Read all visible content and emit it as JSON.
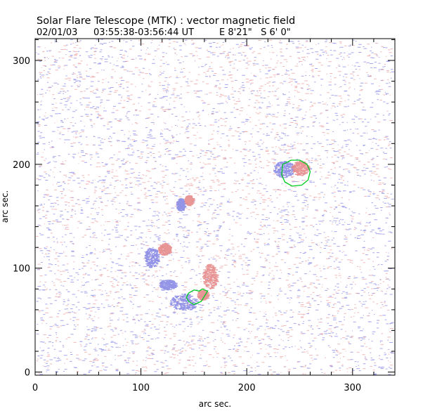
{
  "header": {
    "title": "Solar Flare Telescope (MTK) : vector magnetic field",
    "date": "02/01/03",
    "time_range": "03:55:38-03:56:44 UT",
    "position": "E 8'21\"   S 6' 0\""
  },
  "chart_data": {
    "type": "heatmap",
    "title": "Solar Flare Telescope (MTK) : vector magnetic field",
    "xlabel": "arc sec.",
    "ylabel": "arc sec.",
    "xlim": [
      0,
      340
    ],
    "ylim": [
      -3,
      321
    ],
    "xticks": [
      0,
      100,
      200,
      300
    ],
    "yticks": [
      0,
      100,
      200,
      300
    ],
    "x_minor_step": 20,
    "y_minor_step": 20,
    "colors": {
      "negative": "#8a8ae6",
      "positive": "#e68a8a",
      "contour": "#00cc22",
      "axes": "#000000"
    },
    "regions": [
      {
        "name": "active-region-north-negative",
        "polarity": "negative",
        "x": 235,
        "y": 195,
        "rx": 10,
        "ry": 8
      },
      {
        "name": "active-region-north-positive",
        "polarity": "positive",
        "x": 250,
        "y": 196,
        "rx": 8,
        "ry": 7
      },
      {
        "name": "plage-negative-160",
        "polarity": "negative",
        "x": 137,
        "y": 161,
        "rx": 4,
        "ry": 6
      },
      {
        "name": "plage-positive-165",
        "polarity": "positive",
        "x": 145,
        "y": 165,
        "rx": 4,
        "ry": 5
      },
      {
        "name": "spot-negative-110",
        "polarity": "negative",
        "x": 110,
        "y": 110,
        "rx": 7,
        "ry": 10
      },
      {
        "name": "spot-positive-115",
        "polarity": "positive",
        "x": 122,
        "y": 118,
        "rx": 6,
        "ry": 6
      },
      {
        "name": "spot-positive-90",
        "polarity": "positive",
        "x": 165,
        "y": 92,
        "rx": 7,
        "ry": 12
      },
      {
        "name": "spot-negative-70",
        "polarity": "negative",
        "x": 140,
        "y": 67,
        "rx": 13,
        "ry": 8
      },
      {
        "name": "trail-negative-85",
        "polarity": "negative",
        "x": 125,
        "y": 84,
        "rx": 8,
        "ry": 5
      },
      {
        "name": "spot-positive-75",
        "polarity": "positive",
        "x": 158,
        "y": 74,
        "rx": 5,
        "ry": 5
      }
    ],
    "contours": [
      {
        "name": "contour-north",
        "points": [
          [
            234,
            200
          ],
          [
            242,
            204
          ],
          [
            250,
            204
          ],
          [
            257,
            200
          ],
          [
            260,
            193
          ],
          [
            258,
            185
          ],
          [
            252,
            180
          ],
          [
            243,
            179
          ],
          [
            236,
            183
          ],
          [
            233,
            190
          ]
        ]
      },
      {
        "name": "contour-south",
        "points": [
          [
            145,
            76
          ],
          [
            150,
            79
          ],
          [
            155,
            78
          ],
          [
            158,
            80
          ],
          [
            163,
            78
          ],
          [
            160,
            73
          ],
          [
            157,
            68
          ],
          [
            150,
            65
          ],
          [
            145,
            68
          ],
          [
            143,
            72
          ]
        ]
      }
    ]
  }
}
